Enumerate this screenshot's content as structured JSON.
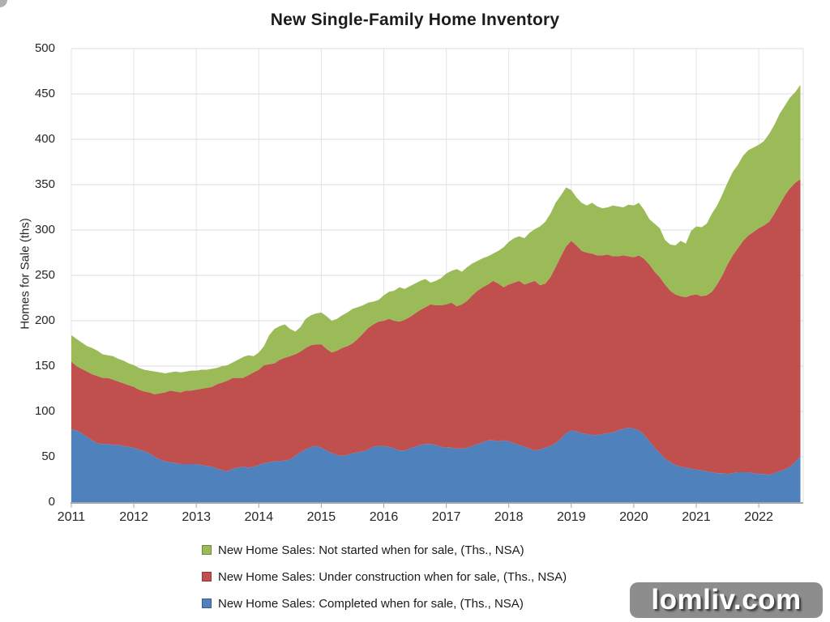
{
  "title": "New Single-Family Home Inventory",
  "watermark": "lomliv.com",
  "chart_data": {
    "type": "area",
    "stacked": true,
    "title": "New Single-Family Home Inventory",
    "xlabel": "",
    "ylabel": "Homes for Sale (ths)",
    "ylim": [
      0,
      500
    ],
    "grid": true,
    "legend_position": "bottom-left",
    "x_range": [
      "2011-01",
      "2022-09"
    ],
    "x_step_months": 1,
    "x_ticks": [
      2011,
      2012,
      2013,
      2014,
      2015,
      2016,
      2017,
      2018,
      2019,
      2020,
      2021,
      2022
    ],
    "y_ticks": [
      0,
      50,
      100,
      150,
      200,
      250,
      300,
      350,
      400,
      450,
      500
    ],
    "stack_order_bottom_to_top": [
      "completed",
      "under_construction",
      "not_started"
    ],
    "series": [
      {
        "key": "not_started",
        "name": "New Home Sales: Not started when for sale, (Ths., NSA)",
        "color": "#9BBB59",
        "values": [
          29,
          30,
          29,
          28,
          29,
          28,
          26,
          25,
          26,
          25,
          25,
          24,
          24,
          24,
          24,
          24,
          25,
          23,
          21,
          20,
          22,
          22,
          21,
          22,
          21,
          21,
          20,
          20,
          18,
          18,
          17,
          17,
          20,
          23,
          22,
          18,
          19,
          21,
          32,
          38,
          37,
          37,
          30,
          25,
          27,
          32,
          33,
          34,
          35,
          36,
          35,
          35,
          36,
          37,
          38,
          35,
          31,
          28,
          25,
          24,
          28,
          30,
          33,
          38,
          34,
          34,
          33,
          32,
          31,
          24,
          27,
          30,
          34,
          35,
          41,
          36,
          37,
          35,
          33,
          32,
          31,
          30,
          36,
          44,
          47,
          49,
          49,
          51,
          55,
          57,
          65,
          68,
          70,
          71,
          67,
          65,
          56,
          53,
          53,
          52,
          56,
          54,
          52,
          52,
          56,
          55,
          53,
          57,
          57,
          58,
          54,
          50,
          53,
          54,
          49,
          51,
          54,
          61,
          59,
          71,
          75,
          76,
          79,
          86,
          87,
          89,
          90,
          92,
          92,
          94,
          94,
          93,
          92,
          93,
          97,
          98,
          100,
          99,
          100,
          100,
          104
        ]
      },
      {
        "key": "under_construction",
        "name": "New Home Sales: Under construction when for sale, (Ths., NSA)",
        "color": "#C0504D",
        "values": [
          75,
          71,
          71,
          72,
          73,
          74,
          73,
          73,
          72,
          70,
          69,
          68,
          67,
          66,
          66,
          67,
          69,
          73,
          76,
          79,
          79,
          79,
          81,
          81,
          82,
          84,
          86,
          88,
          93,
          97,
          100,
          100,
          99,
          98,
          102,
          104,
          105,
          108,
          108,
          108,
          112,
          113,
          114,
          112,
          111,
          112,
          112,
          112,
          114,
          112,
          111,
          115,
          119,
          120,
          121,
          125,
          130,
          134,
          135,
          137,
          138,
          141,
          141,
          142,
          144,
          145,
          147,
          149,
          151,
          154,
          154,
          156,
          158,
          160,
          157,
          159,
          162,
          166,
          169,
          171,
          172,
          176,
          174,
          169,
          173,
          177,
          181,
          179,
          183,
          187,
          181,
          181,
          186,
          194,
          201,
          206,
          209,
          205,
          201,
          200,
          200,
          198,
          197,
          197,
          194,
          192,
          191,
          189,
          189,
          193,
          194,
          195,
          194,
          194,
          192,
          189,
          188,
          188,
          188,
          191,
          193,
          192,
          194,
          199,
          208,
          218,
          231,
          240,
          247,
          255,
          261,
          266,
          271,
          274,
          279,
          286,
          294,
          302,
          307,
          308,
          305
        ]
      },
      {
        "key": "completed",
        "name": "New Home Sales: Completed when for sale, (Ths., NSA)",
        "color": "#4F81BD",
        "values": [
          80,
          79,
          76,
          72,
          68,
          65,
          64,
          64,
          63,
          63,
          62,
          61,
          60,
          58,
          56,
          54,
          50,
          47,
          45,
          44,
          43,
          42,
          42,
          42,
          42,
          41,
          40,
          39,
          37,
          35,
          34,
          37,
          38,
          39,
          38,
          39,
          41,
          43,
          44,
          45,
          45,
          46,
          47,
          51,
          55,
          58,
          61,
          62,
          60,
          57,
          54,
          52,
          51,
          52,
          54,
          55,
          56,
          58,
          61,
          62,
          62,
          61,
          59,
          57,
          57,
          59,
          61,
          63,
          64,
          64,
          63,
          61,
          60,
          60,
          59,
          59,
          60,
          62,
          64,
          66,
          68,
          68,
          67,
          68,
          67,
          65,
          63,
          61,
          59,
          57,
          58,
          60,
          62,
          65,
          70,
          76,
          79,
          78,
          76,
          75,
          74,
          74,
          75,
          76,
          77,
          79,
          81,
          82,
          81,
          79,
          74,
          67,
          60,
          54,
          48,
          44,
          41,
          39,
          38,
          37,
          36,
          35,
          34,
          33,
          32,
          32,
          31,
          32,
          33,
          33,
          33,
          32,
          31,
          31,
          30,
          32,
          34,
          36,
          39,
          44,
          51
        ]
      }
    ]
  }
}
